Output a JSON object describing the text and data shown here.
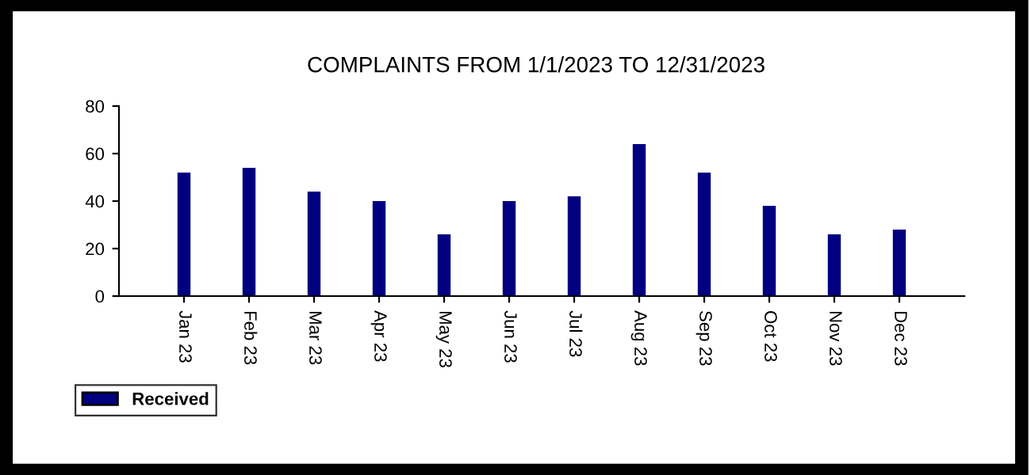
{
  "chart_data": {
    "type": "bar",
    "title": "COMPLAINTS FROM 1/1/2023 TO 12/31/2023",
    "categories": [
      "Jan 23",
      "Feb 23",
      "Mar 23",
      "Apr 23",
      "May 23",
      "Jun 23",
      "Jul 23",
      "Aug 23",
      "Sep 23",
      "Oct 23",
      "Nov 23",
      "Dec 23"
    ],
    "series": [
      {
        "name": "Received",
        "color": "#000080",
        "values": [
          52,
          54,
          44,
          40,
          26,
          40,
          42,
          64,
          52,
          38,
          26,
          28
        ]
      }
    ],
    "ylim": [
      0,
      80
    ],
    "yticks": [
      0,
      20,
      40,
      60,
      80
    ],
    "grid": false,
    "legend": "bottom left"
  }
}
